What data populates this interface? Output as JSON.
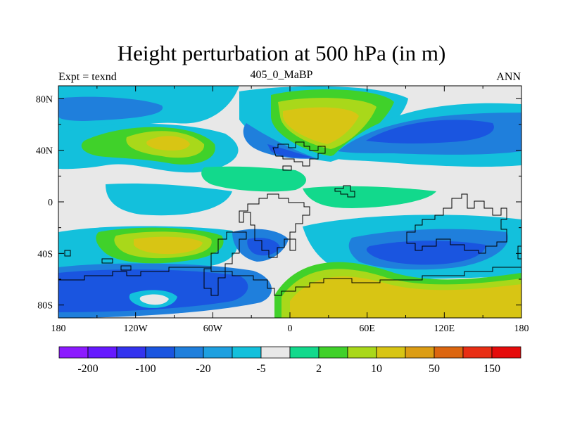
{
  "title": "Height perturbation at 500 hPa (in m)",
  "left_label": "Expt = texnd",
  "center_label": "405_0_MaBP",
  "right_label": "ANN",
  "axes": {
    "lon_ticks": [
      "180",
      "120W",
      "60W",
      "0",
      "60E",
      "120E",
      "180"
    ],
    "lat_ticks": [
      "80N",
      "40N",
      "0",
      "40S",
      "80S"
    ]
  },
  "colorbar": {
    "colors": [
      "#8c1aff",
      "#6619ff",
      "#3333ee",
      "#1a55e0",
      "#1f7fdc",
      "#1ea0e0",
      "#13c0dc",
      "#e8e8e8",
      "#12d98c",
      "#40d12a",
      "#a9d81a",
      "#d8c514",
      "#dc9d14",
      "#dc6610",
      "#e82e14",
      "#e50b0b"
    ],
    "labels": [
      "-200",
      "-100",
      "-20",
      "-5",
      "2",
      "10",
      "50",
      "150"
    ]
  },
  "palette": {
    "land_outline": "#000000",
    "background": "#e8e8e8"
  }
}
